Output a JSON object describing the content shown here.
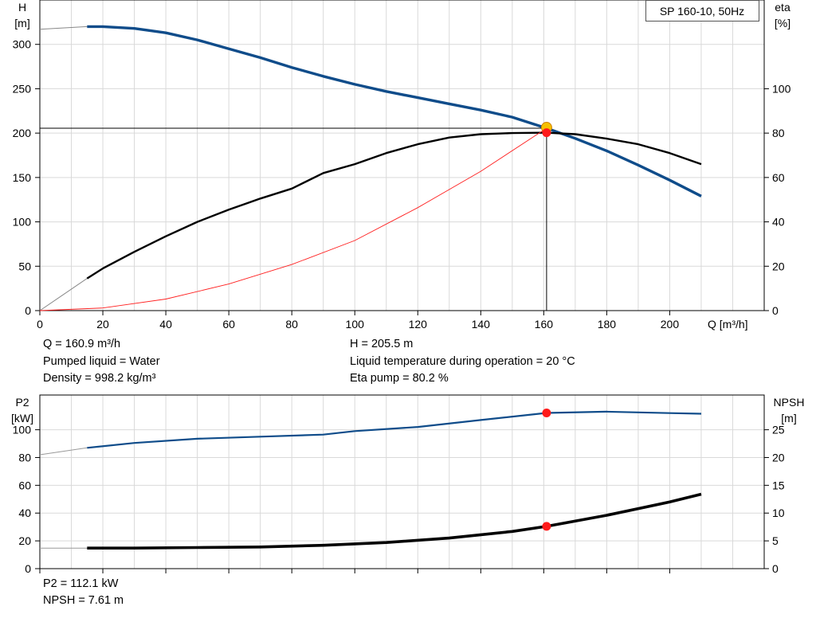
{
  "chart_data": [
    {
      "type": "line",
      "title": "SP 160-10, 50Hz",
      "xlabel": "Q [m³/h]",
      "ylabel_left": [
        "H",
        "[m]"
      ],
      "ylabel_right": [
        "eta",
        "[%]"
      ],
      "xlim": [
        0,
        230
      ],
      "ylim_left": [
        0,
        350
      ],
      "ylim_right": [
        0,
        140
      ],
      "x_ticks": [
        0,
        20,
        40,
        60,
        80,
        100,
        120,
        140,
        160,
        180,
        200
      ],
      "y_ticks_left": [
        0,
        50,
        100,
        150,
        200,
        250,
        300
      ],
      "y_ticks_right": [
        0,
        20,
        40,
        60,
        80,
        100
      ],
      "grid": true,
      "colors": {
        "head": "#0f4c8a",
        "eta": "#000000",
        "system": "#ff2020",
        "point_fill": "#ff1a1a",
        "point_ring": "#f5c000"
      },
      "series": [
        {
          "key": "head",
          "axis": "left",
          "x": [
            0,
            15,
            20,
            30,
            40,
            50,
            60,
            70,
            80,
            90,
            100,
            110,
            120,
            130,
            140,
            150,
            160.9,
            170,
            180,
            190,
            200,
            210
          ],
          "values": [
            317,
            320,
            320,
            318,
            313,
            305,
            295,
            285,
            274,
            264,
            255,
            247,
            240,
            233,
            226,
            218,
            205.5,
            194,
            180,
            164,
            147,
            129
          ]
        },
        {
          "key": "eta",
          "axis": "right",
          "x": [
            0,
            15,
            20,
            30,
            40,
            50,
            60,
            70,
            80,
            90,
            100,
            110,
            120,
            130,
            140,
            150,
            160.9,
            170,
            180,
            190,
            200,
            210
          ],
          "values": [
            0,
            14.5,
            19,
            26.5,
            33.5,
            40,
            45.5,
            50.5,
            55,
            62,
            66,
            71,
            75,
            78,
            79.5,
            80,
            80.2,
            79.5,
            77.5,
            75,
            71,
            66
          ]
        },
        {
          "key": "system",
          "axis": "left",
          "x": [
            0,
            20,
            40,
            60,
            80,
            100,
            120,
            140,
            160.9
          ],
          "values": [
            0,
            3,
            13,
            30,
            52,
            79,
            116,
            157,
            205.5
          ]
        }
      ],
      "operating_point": {
        "x": 160.9,
        "head": 205.5,
        "eta": 80.2
      }
    },
    {
      "type": "line",
      "xlabel": "",
      "ylabel_left": [
        "P2",
        "[kW]"
      ],
      "ylabel_right": [
        "NPSH",
        "[m]"
      ],
      "xlim": [
        0,
        230
      ],
      "ylim_left": [
        0,
        125
      ],
      "ylim_right": [
        0,
        31.25
      ],
      "y_ticks_left": [
        0,
        20,
        40,
        60,
        80,
        100
      ],
      "y_ticks_right": [
        0,
        5,
        10,
        15,
        20,
        25
      ],
      "grid": true,
      "colors": {
        "p2": "#0f4c8a",
        "npsh": "#000000",
        "point_fill": "#ff1a1a"
      },
      "series": [
        {
          "key": "p2",
          "axis": "left",
          "x": [
            0,
            15,
            30,
            50,
            70,
            90,
            100,
            120,
            140,
            160.9,
            180,
            200,
            210
          ],
          "values": [
            82,
            87,
            90.5,
            93.5,
            95,
            96.5,
            99,
            102,
            107,
            112.1,
            113,
            112,
            111.5
          ]
        },
        {
          "key": "npsh",
          "axis": "right",
          "x": [
            0,
            15,
            30,
            50,
            70,
            90,
            110,
            130,
            150,
            160.9,
            180,
            200,
            210
          ],
          "values": [
            3.7,
            3.7,
            3.7,
            3.8,
            3.9,
            4.2,
            4.7,
            5.5,
            6.7,
            7.61,
            9.6,
            12,
            13.4
          ]
        }
      ],
      "operating_point": {
        "x": 160.9,
        "p2": 112.1,
        "npsh": 7.61
      }
    }
  ],
  "info": {
    "q": "Q = 160.9 m³/h",
    "liquid": "Pumped liquid = Water",
    "density": "Density = 998.2 kg/m³",
    "h": "H = 205.5 m",
    "temp": "Liquid temperature during operation = 20 °C",
    "eta": "Eta pump = 80.2 %",
    "p2": "P2 = 112.1 kW",
    "npsh": "NPSH = 7.61 m"
  }
}
